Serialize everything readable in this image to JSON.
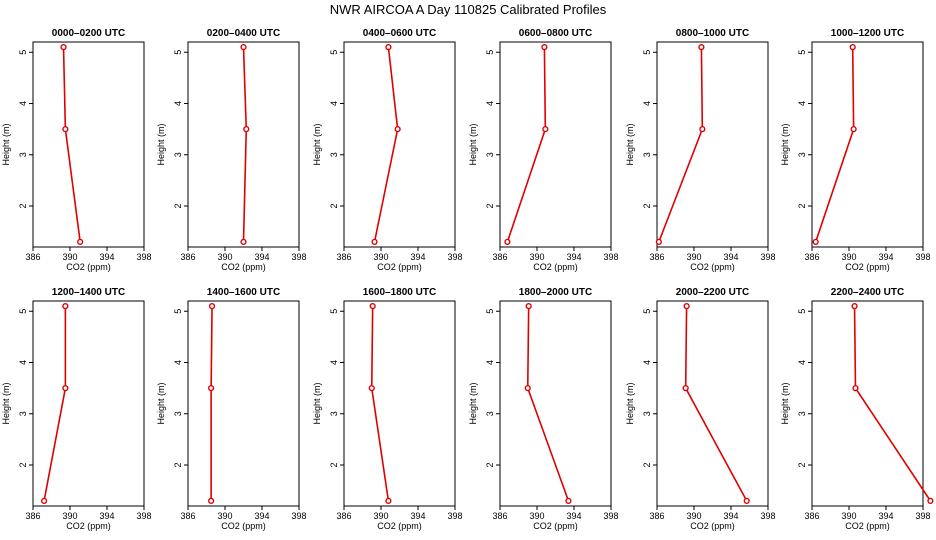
{
  "figure": {
    "title": "NWR AIRCOA A  Day 110825  Calibrated Profiles"
  },
  "style": {
    "line_color": "#e00000",
    "marker_color": "#e00000",
    "axis_color": "#000000"
  },
  "chart_data": [
    {
      "type": "line",
      "title": "0000–0200 UTC",
      "xlabel": "CO2 (ppm)",
      "ylabel": "Height (m)",
      "xlim": [
        386,
        398
      ],
      "ylim": [
        1.2,
        5.2
      ],
      "xticks": [
        386,
        390,
        394,
        398
      ],
      "yticks": [
        2,
        3,
        4,
        5
      ],
      "x": [
        389.3,
        389.5,
        391.1
      ],
      "y": [
        5.1,
        3.5,
        1.3
      ]
    },
    {
      "type": "line",
      "title": "0200–0400 UTC",
      "xlabel": "CO2 (ppm)",
      "ylabel": "Height (m)",
      "xlim": [
        386,
        398
      ],
      "ylim": [
        1.2,
        5.2
      ],
      "xticks": [
        386,
        390,
        394,
        398
      ],
      "yticks": [
        2,
        3,
        4,
        5
      ],
      "x": [
        392.0,
        392.3,
        392.0
      ],
      "y": [
        5.1,
        3.5,
        1.3
      ]
    },
    {
      "type": "line",
      "title": "0400–0600 UTC",
      "xlabel": "CO2 (ppm)",
      "ylabel": "Height (m)",
      "xlim": [
        386,
        398
      ],
      "ylim": [
        1.2,
        5.2
      ],
      "xticks": [
        386,
        390,
        394,
        398
      ],
      "yticks": [
        2,
        3,
        4,
        5
      ],
      "x": [
        390.8,
        391.8,
        389.3
      ],
      "y": [
        5.1,
        3.5,
        1.3
      ]
    },
    {
      "type": "line",
      "title": "0600–0800 UTC",
      "xlabel": "CO2 (ppm)",
      "ylabel": "Height (m)",
      "xlim": [
        386,
        398
      ],
      "ylim": [
        1.2,
        5.2
      ],
      "xticks": [
        386,
        390,
        394,
        398
      ],
      "yticks": [
        2,
        3,
        4,
        5
      ],
      "x": [
        390.8,
        390.9,
        386.8
      ],
      "y": [
        5.1,
        3.5,
        1.3
      ]
    },
    {
      "type": "line",
      "title": "0800–1000 UTC",
      "xlabel": "CO2 (ppm)",
      "ylabel": "Height (m)",
      "xlim": [
        386,
        398
      ],
      "ylim": [
        1.2,
        5.2
      ],
      "xticks": [
        386,
        390,
        394,
        398
      ],
      "yticks": [
        2,
        3,
        4,
        5
      ],
      "x": [
        390.8,
        390.9,
        386.2
      ],
      "y": [
        5.1,
        3.5,
        1.3
      ]
    },
    {
      "type": "line",
      "title": "1000–1200 UTC",
      "xlabel": "CO2 (ppm)",
      "ylabel": "Height (m)",
      "xlim": [
        386,
        398
      ],
      "ylim": [
        1.2,
        5.2
      ],
      "xticks": [
        386,
        390,
        394,
        398
      ],
      "yticks": [
        2,
        3,
        4,
        5
      ],
      "x": [
        390.4,
        390.5,
        386.4
      ],
      "y": [
        5.1,
        3.5,
        1.3
      ]
    },
    {
      "type": "line",
      "title": "1200–1400 UTC",
      "xlabel": "CO2 (ppm)",
      "ylabel": "Height (m)",
      "xlim": [
        386,
        398
      ],
      "ylim": [
        1.2,
        5.2
      ],
      "xticks": [
        386,
        390,
        394,
        398
      ],
      "yticks": [
        2,
        3,
        4,
        5
      ],
      "x": [
        389.5,
        389.5,
        387.2
      ],
      "y": [
        5.1,
        3.5,
        1.3
      ]
    },
    {
      "type": "line",
      "title": "1400–1600 UTC",
      "xlabel": "CO2 (ppm)",
      "ylabel": "Height (m)",
      "xlim": [
        386,
        398
      ],
      "ylim": [
        1.2,
        5.2
      ],
      "xticks": [
        386,
        390,
        394,
        398
      ],
      "yticks": [
        2,
        3,
        4,
        5
      ],
      "x": [
        388.6,
        388.5,
        388.5
      ],
      "y": [
        5.1,
        3.5,
        1.3
      ]
    },
    {
      "type": "line",
      "title": "1600–1800 UTC",
      "xlabel": "CO2 (ppm)",
      "ylabel": "Height (m)",
      "xlim": [
        386,
        398
      ],
      "ylim": [
        1.2,
        5.2
      ],
      "xticks": [
        386,
        390,
        394,
        398
      ],
      "yticks": [
        2,
        3,
        4,
        5
      ],
      "x": [
        389.1,
        389.0,
        390.8
      ],
      "y": [
        5.1,
        3.5,
        1.3
      ]
    },
    {
      "type": "line",
      "title": "1800–2000 UTC",
      "xlabel": "CO2 (ppm)",
      "ylabel": "Height (m)",
      "xlim": [
        386,
        398
      ],
      "ylim": [
        1.2,
        5.2
      ],
      "xticks": [
        386,
        390,
        394,
        398
      ],
      "yticks": [
        2,
        3,
        4,
        5
      ],
      "x": [
        389.1,
        389.0,
        393.4
      ],
      "y": [
        5.1,
        3.5,
        1.3
      ]
    },
    {
      "type": "line",
      "title": "2000–2200 UTC",
      "xlabel": "CO2 (ppm)",
      "ylabel": "Height (m)",
      "xlim": [
        386,
        398
      ],
      "ylim": [
        1.2,
        5.2
      ],
      "xticks": [
        386,
        390,
        394,
        398
      ],
      "yticks": [
        2,
        3,
        4,
        5
      ],
      "x": [
        389.2,
        389.1,
        395.7
      ],
      "y": [
        5.1,
        3.5,
        1.3
      ]
    },
    {
      "type": "line",
      "title": "2200–2400 UTC",
      "xlabel": "CO2 (ppm)",
      "ylabel": "Height (m)",
      "xlim": [
        386,
        398
      ],
      "ylim": [
        1.2,
        5.2
      ],
      "xticks": [
        386,
        390,
        394,
        398
      ],
      "yticks": [
        2,
        3,
        4,
        5
      ],
      "x": [
        390.6,
        390.7,
        398.8
      ],
      "y": [
        5.1,
        3.5,
        1.3
      ]
    }
  ]
}
